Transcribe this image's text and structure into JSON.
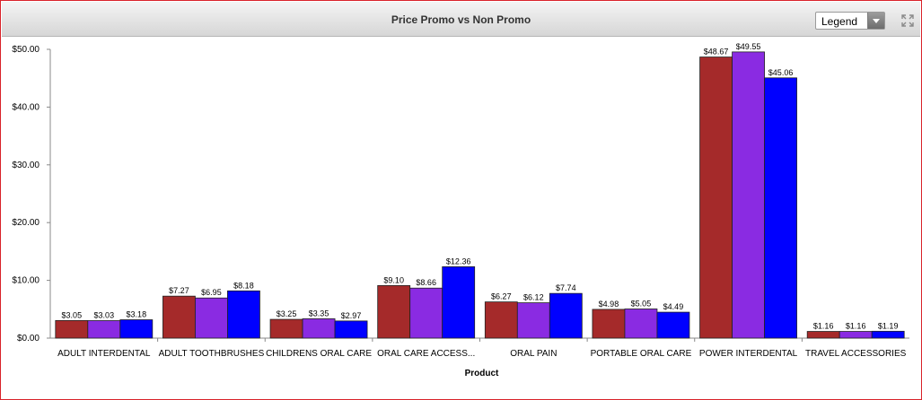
{
  "header": {
    "title": "Price Promo vs Non Promo",
    "legend_label": "Legend",
    "expand_icon": "expand-icon",
    "dropdown_icon": "chevron-down-icon"
  },
  "chart_data": {
    "type": "bar",
    "title": "Price Promo vs Non Promo",
    "xlabel": "Product",
    "ylabel": "",
    "ylim": [
      0,
      50
    ],
    "yticks": [
      "$0.00",
      "$10.00",
      "$20.00",
      "$30.00",
      "$40.00",
      "$50.00"
    ],
    "ytick_values": [
      0,
      10,
      20,
      30,
      40,
      50
    ],
    "grid": false,
    "categories": [
      "ADULT INTERDENTAL",
      "ADULT TOOTHBRUSHES",
      "CHILDRENS ORAL CARE",
      "ORAL CARE ACCESS...",
      "ORAL PAIN",
      "PORTABLE ORAL CARE",
      "POWER INTERDENTAL",
      "TRAVEL ACCESSORIES"
    ],
    "series": [
      {
        "color": "#a52a2a",
        "values": [
          3.05,
          7.27,
          3.25,
          9.1,
          6.27,
          4.98,
          48.67,
          1.16
        ],
        "labels": [
          "$3.05",
          "$7.27",
          "$3.25",
          "$9.10",
          "$6.27",
          "$4.98",
          "$48.67",
          "$1.16"
        ]
      },
      {
        "color": "#8a2be2",
        "values": [
          3.03,
          6.95,
          3.35,
          8.66,
          6.12,
          5.05,
          49.55,
          1.16
        ],
        "labels": [
          "$3.03",
          "$6.95",
          "$3.35",
          "$8.66",
          "$6.12",
          "$5.05",
          "$49.55",
          "$1.16"
        ]
      },
      {
        "color": "#0000ff",
        "values": [
          3.18,
          8.18,
          2.97,
          12.36,
          7.74,
          4.49,
          45.06,
          1.19
        ],
        "labels": [
          "$3.18",
          "$8.18",
          "$2.97",
          "$12.36",
          "$7.74",
          "$4.49",
          "$45.06",
          "$1.19"
        ]
      }
    ]
  }
}
